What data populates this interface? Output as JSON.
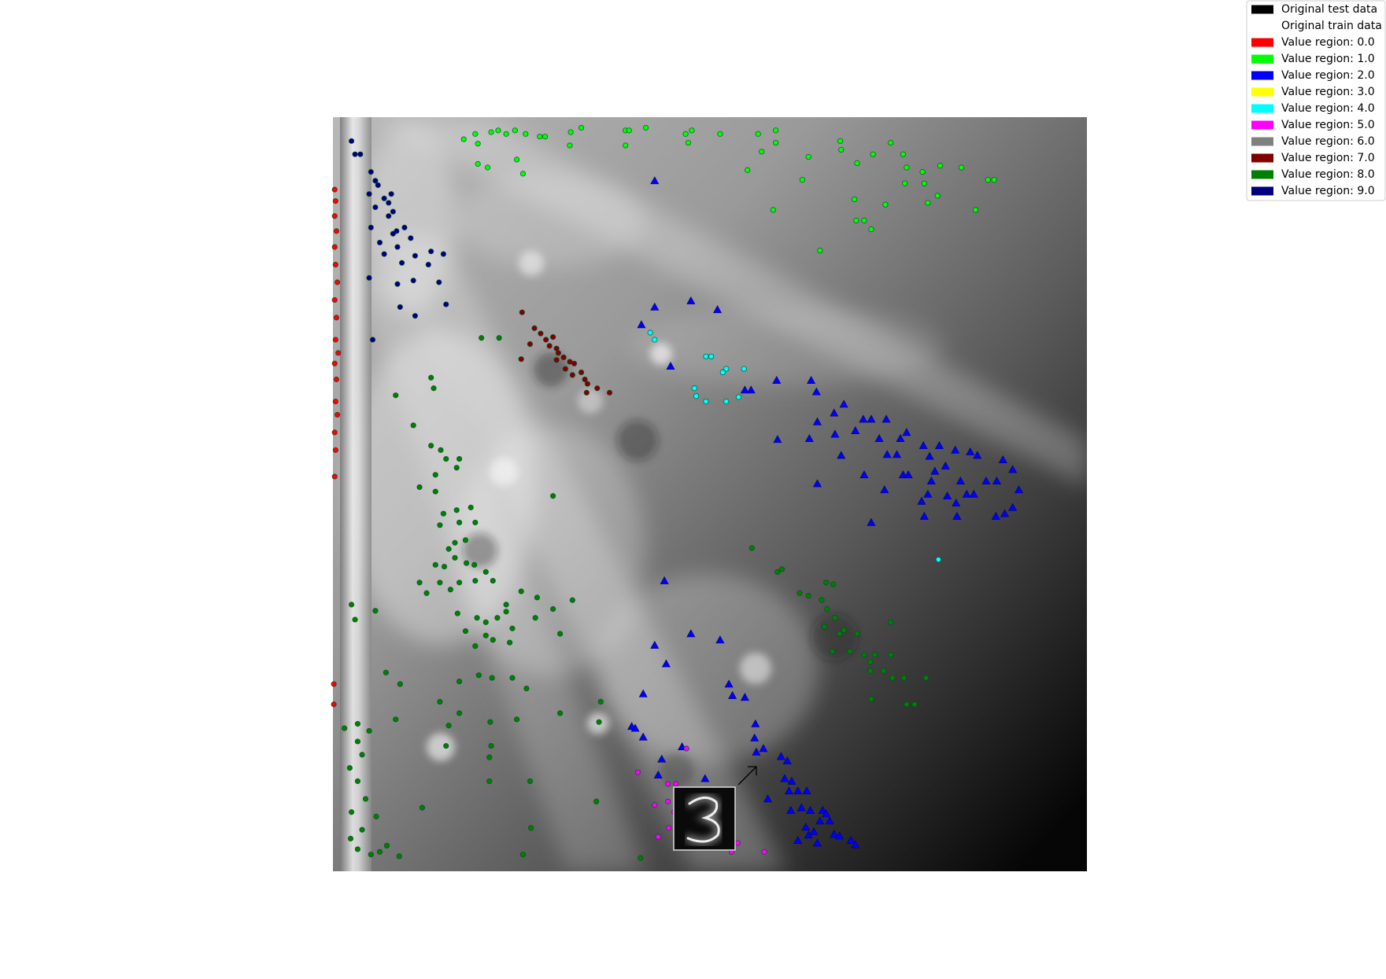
{
  "chart_data": {
    "type": "scatter",
    "xlim": [
      377,
      1230
    ],
    "ylim": [
      987,
      133
    ],
    "legend_position": "upper right",
    "series": [
      {
        "name": "Original test data",
        "color": "#000000",
        "marker": "circle",
        "x": [],
        "values": []
      },
      {
        "name": "Original train data",
        "color": "#ffffff",
        "marker": "circle",
        "x": [],
        "values": []
      },
      {
        "name": "Value region: 0.0",
        "color": "#ff0000",
        "marker": "circle",
        "x": [
          379,
          380,
          379,
          381,
          379,
          380,
          382,
          379,
          381,
          380,
          383,
          379,
          381,
          380,
          382,
          379,
          380,
          379,
          378,
          378
        ],
        "values": [
          215,
          228,
          245,
          262,
          280,
          300,
          320,
          340,
          360,
          385,
          400,
          412,
          430,
          455,
          470,
          490,
          510,
          540,
          775,
          798
        ]
      },
      {
        "name": "Value region: 1.0",
        "color": "#00ff00",
        "marker": "circle",
        "x": [
          525,
          538,
          541,
          556,
          564,
          573,
          583,
          595,
          611,
          617,
          646,
          658,
          645,
          708,
          712,
          731,
          708,
          776,
          783,
          779,
          815,
          858,
          878,
          862,
          878,
          846,
          541,
          552,
          585,
          592,
          915,
          951,
          952,
          908,
          970,
          988,
          1008,
          1022,
          1026,
          1044,
          1064,
          1088,
          1024,
          1046,
          1061,
          1050,
          1118,
          1125,
          1104,
          967,
          1002,
          969,
          978,
          986,
          928,
          875
        ],
        "values": [
          158,
          152,
          163,
          150,
          148,
          152,
          148,
          152,
          155,
          155,
          150,
          145,
          165,
          148,
          148,
          145,
          165,
          152,
          148,
          162,
          152,
          152,
          148,
          172,
          162,
          193,
          186,
          190,
          181,
          197,
          178,
          160,
          170,
          204,
          185,
          175,
          162,
          175,
          190,
          195,
          188,
          190,
          208,
          208,
          222,
          230,
          204,
          204,
          238,
          226,
          232,
          250,
          250,
          260,
          284,
          238
        ]
      },
      {
        "name": "Value region: 2.0",
        "color": "#0000ff",
        "marker": "triangle",
        "x": [
          741,
          741,
          782,
          812,
          726,
          759,
          843,
          850,
          879,
          918,
          924,
          955,
          944,
          977,
          986,
          1003,
          925,
          968,
          945,
          995,
          1019,
          1026,
          880,
          916,
          1045,
          1063,
          1081,
          1098,
          1106,
          1004,
          1015,
          952,
          1052,
          1135,
          1146,
          1070,
          1022,
          1028,
          978,
          1058,
          1054,
          1087,
          1116,
          1128,
          1153,
          1001,
          1043,
          1050,
          1072,
          1094,
          1102,
          1082,
          1146,
          1127,
          1137,
          1046,
          1083,
          986,
          925,
          752,
          782,
          815,
          741,
          754,
          825,
          829,
          843,
          728,
          715,
          719,
          728,
          855,
          854,
          856,
          864,
          884,
          891,
          749,
          772,
          745,
          798,
          888,
          896,
          893,
          903,
          913,
          869,
          895,
          907,
          917,
          931,
          935,
          928,
          939,
          912,
          921,
          944,
          915,
          903,
          925,
          950,
          963,
          968
        ],
        "values": [
          205,
          348,
          341,
          351,
          368,
          415,
          442,
          442,
          431,
          431,
          444,
          458,
          468,
          475,
          475,
          475,
          478,
          488,
          492,
          497,
          497,
          490,
          498,
          497,
          505,
          505,
          510,
          512,
          516,
          515,
          515,
          516,
          517,
          521,
          532,
          528,
          538,
          538,
          538,
          534,
          545,
          545,
          545,
          545,
          555,
          555,
          568,
          560,
          562,
          560,
          560,
          570,
          575,
          585,
          582,
          585,
          585,
          592,
          548,
          658,
          718,
          725,
          731,
          752,
          775,
          788,
          790,
          786,
          823,
          825,
          835,
          820,
          836,
          852,
          848,
          857,
          862,
          860,
          846,
          878,
          882,
          882,
          885,
          896,
          896,
          896,
          905,
          918,
          915,
          918,
          918,
          922,
          930,
          930,
          937,
          942,
          945,
          946,
          952,
          955,
          947,
          952,
          957
        ]
      },
      {
        "name": "Value region: 3.0",
        "color": "#ffff00",
        "marker": "circle",
        "x": [],
        "values": []
      },
      {
        "name": "Value region: 4.0",
        "color": "#00ffff",
        "marker": "circle",
        "x": [
          736,
          741,
          799,
          805,
          822,
          818,
          842,
          786,
          788,
          799,
          822,
          836,
          1062
        ],
        "values": [
          377,
          385,
          404,
          404,
          418,
          422,
          418,
          440,
          449,
          455,
          455,
          450,
          634
        ]
      },
      {
        "name": "Value region: 5.0",
        "color": "#ff00ff",
        "marker": "circle",
        "x": [
          722,
          756,
          765,
          741,
          756,
          763,
          745,
          757,
          828,
          865,
          777,
          835
        ],
        "values": [
          875,
          888,
          888,
          912,
          908,
          920,
          948,
          938,
          965,
          965,
          848,
          955
        ]
      },
      {
        "name": "Value region: 6.0",
        "color": "#808080",
        "marker": "circle",
        "x": [],
        "values": []
      },
      {
        "name": "Value region: 7.0",
        "color": "#800000",
        "marker": "circle",
        "x": [
          591,
          605,
          612,
          618,
          626,
          622,
          630,
          638,
          645,
          650,
          640,
          658,
          662,
          665,
          676,
          664,
          690,
          600,
          630,
          648,
          590,
          632
        ],
        "values": [
          354,
          372,
          378,
          385,
          382,
          392,
          395,
          405,
          410,
          412,
          418,
          422,
          430,
          435,
          440,
          445,
          445,
          390,
          408,
          425,
          407,
          400
        ]
      },
      {
        "name": "Value region: 8.0",
        "color": "#008000",
        "marker": "circle",
        "x": [
          545,
          565,
          488,
          448,
          491,
          468,
          488,
          499,
          505,
          520,
          517,
          493,
          475,
          493,
          502,
          517,
          533,
          498,
          520,
          538,
          515,
          527,
          508,
          493,
          503,
          515,
          528,
          537,
          550,
          558,
          538,
          520,
          510,
          498,
          483,
          518,
          540,
          550,
          563,
          573,
          527,
          550,
          538,
          558,
          577,
          573,
          590,
          608,
          626,
          606,
          580,
          634,
          626,
          648,
          557,
          580,
          596,
          520,
          542,
          498,
          520,
          555,
          585,
          634,
          678,
          680,
          508,
          556,
          554,
          600,
          554,
          675,
          601,
          592,
          725,
          437,
          453,
          448,
          398,
          402,
          425,
          390,
          405,
          418,
          405,
          410,
          396,
          405,
          414,
          398,
          410,
          397,
          405,
          420,
          452,
          430,
          478,
          475,
          505,
          851,
          880,
          885,
          905,
          915,
          935,
          943,
          930,
          936,
          945,
          933,
          950,
          955,
          970,
          942,
          962,
          978,
          985,
          990,
          1008,
          1000,
          1010,
          1023,
          1048,
          1026,
          1035,
          986,
          1008,
          985,
          426,
          438
        ],
        "values": [
          383,
          383,
          428,
          448,
          440,
          482,
          505,
          510,
          520,
          520,
          530,
          538,
          552,
          557,
          582,
          578,
          575,
          595,
          592,
          592,
          615,
          612,
          622,
          640,
          642,
          632,
          638,
          640,
          648,
          658,
          658,
          660,
          668,
          660,
          672,
          695,
          700,
          705,
          700,
          693,
          715,
          720,
          732,
          725,
          728,
          685,
          670,
          677,
          690,
          700,
          712,
          718,
          562,
          680,
          768,
          768,
          780,
          772,
          765,
          795,
          808,
          818,
          815,
          808,
          818,
          795,
          822,
          845,
          858,
          885,
          885,
          908,
          938,
          968,
          972,
          762,
          775,
          815,
          685,
          702,
          692,
          825,
          820,
          828,
          840,
          855,
          870,
          885,
          905,
          920,
          940,
          950,
          962,
          968,
          970,
          965,
          915,
          660,
          845,
          621,
          648,
          645,
          672,
          675,
          660,
          662,
          680,
          690,
          700,
          710,
          718,
          714,
          718,
          738,
          738,
          742,
          750,
          742,
          742,
          760,
          768,
          768,
          768,
          798,
          798,
          792,
          705,
          760,
          925,
          958
        ]
      },
      {
        "name": "Value region: 9.0",
        "color": "#000080",
        "marker": "circle",
        "x": [
          398,
          402,
          408,
          420,
          425,
          428,
          443,
          435,
          425,
          440,
          445,
          458,
          449,
          465,
          430,
          450,
          455,
          470,
          488,
          502,
          485,
          468,
          450,
          497,
          505,
          453,
          470,
          422,
          418,
          435,
          445,
          420,
          440,
          418
        ],
        "values": [
          160,
          175,
          175,
          195,
          205,
          210,
          220,
          225,
          235,
          245,
          240,
          258,
          262,
          270,
          275,
          280,
          298,
          290,
          285,
          288,
          300,
          318,
          322,
          320,
          345,
          348,
          358,
          385,
          315,
          288,
          265,
          258,
          230,
          220
        ]
      }
    ]
  }
}
